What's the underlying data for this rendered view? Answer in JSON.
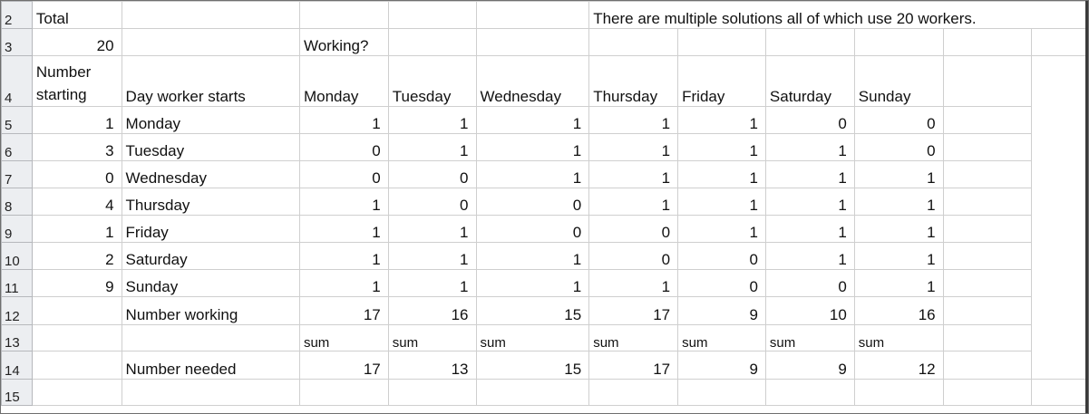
{
  "rows": {
    "r2": {
      "num": "2",
      "A": "Total",
      "G": "There are multiple solutions all of which use 20 workers."
    },
    "r3": {
      "num": "3",
      "A": "20",
      "C": "Working?"
    },
    "r4": {
      "num": "4",
      "A1": "Number",
      "A2": "starting",
      "B": "Day worker starts",
      "days": [
        "Monday",
        "Tuesday",
        "Wednesday",
        "Thursday",
        "Friday",
        "Saturday",
        "Sunday"
      ]
    },
    "r5": {
      "num": "5",
      "A": "1",
      "B": "Monday",
      "v": [
        "1",
        "1",
        "1",
        "1",
        "1",
        "0",
        "0"
      ]
    },
    "r6": {
      "num": "6",
      "A": "3",
      "B": "Tuesday",
      "v": [
        "0",
        "1",
        "1",
        "1",
        "1",
        "1",
        "0"
      ]
    },
    "r7": {
      "num": "7",
      "A": "0",
      "B": "Wednesday",
      "v": [
        "0",
        "0",
        "1",
        "1",
        "1",
        "1",
        "1"
      ]
    },
    "r8": {
      "num": "8",
      "A": "4",
      "B": "Thursday",
      "v": [
        "1",
        "0",
        "0",
        "1",
        "1",
        "1",
        "1"
      ]
    },
    "r9": {
      "num": "9",
      "A": "1",
      "B": "Friday",
      "v": [
        "1",
        "1",
        "0",
        "0",
        "1",
        "1",
        "1"
      ]
    },
    "r10": {
      "num": "10",
      "A": "2",
      "B": "Saturday",
      "v": [
        "1",
        "1",
        "1",
        "0",
        "0",
        "1",
        "1"
      ]
    },
    "r11": {
      "num": "11",
      "A": "9",
      "B": "Sunday",
      "v": [
        "1",
        "1",
        "1",
        "1",
        "0",
        "0",
        "1"
      ]
    },
    "r12": {
      "num": "12",
      "B": "Number working",
      "v": [
        "17",
        "16",
        "15",
        "17",
        "9",
        "10",
        "16"
      ]
    },
    "r13": {
      "num": "13",
      "v": [
        "sum",
        "sum",
        "sum",
        "sum",
        "sum",
        "sum",
        "sum"
      ]
    },
    "r14": {
      "num": "14",
      "B": "Number needed",
      "v": [
        "17",
        "13",
        "15",
        "17",
        "9",
        "9",
        "12"
      ]
    },
    "r15": {
      "num": "15"
    }
  }
}
